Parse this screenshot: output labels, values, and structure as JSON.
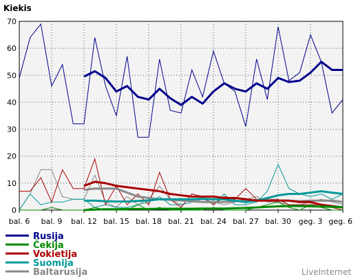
{
  "chart_data": {
    "type": "line",
    "ylabel": "Kiekis",
    "ylim": [
      0,
      70
    ],
    "yticks": [
      0,
      10,
      20,
      30,
      40,
      50,
      60,
      70
    ],
    "x_ticks": [
      "bal. 6",
      "bal. 9",
      "bal. 12",
      "bal. 15",
      "bal. 18",
      "bal. 21",
      "bal. 24",
      "bal. 27",
      "bal. 30",
      "geg. 3",
      "geg. 6"
    ],
    "x_days": [
      "bal. 6",
      "bal. 7",
      "bal. 8",
      "bal. 9",
      "bal. 10",
      "bal. 11",
      "bal. 12",
      "bal. 13",
      "bal. 14",
      "bal. 15",
      "bal. 16",
      "bal. 17",
      "bal. 18",
      "bal. 19",
      "bal. 20",
      "bal. 21",
      "bal. 22",
      "bal. 23",
      "bal. 24",
      "bal. 25",
      "bal. 26",
      "bal. 27",
      "bal. 28",
      "bal. 29",
      "bal. 30",
      "geg. 1",
      "geg. 2",
      "geg. 3",
      "geg. 4",
      "geg. 5",
      "geg. 6"
    ],
    "grid": true,
    "legend_position": "bottom-left",
    "series": [
      {
        "name": "Rusija",
        "color": "#00008b",
        "daily": [
          49,
          64,
          69,
          46,
          54,
          32,
          32,
          64,
          46,
          35,
          57,
          27,
          27,
          56,
          37,
          36,
          52,
          42,
          59,
          47,
          44,
          31,
          56,
          41,
          68,
          48,
          51,
          65,
          55,
          36,
          41
        ],
        "trend": [
          null,
          null,
          null,
          null,
          null,
          null,
          49.5,
          51.5,
          49,
          44,
          46,
          42,
          41,
          45,
          41.5,
          39,
          42,
          39.5,
          44,
          47,
          45,
          44,
          47,
          45,
          49,
          47.5,
          48,
          51,
          55,
          52,
          52
        ]
      },
      {
        "name": "Čekija",
        "color": "#008800",
        "daily": [
          0,
          0,
          0,
          1,
          0,
          0,
          0,
          1,
          0,
          0,
          0,
          2,
          0,
          1,
          0,
          0,
          0,
          0,
          1,
          0,
          0,
          0,
          1,
          2,
          3,
          1,
          0,
          2,
          1,
          0,
          0
        ],
        "trend": [
          null,
          null,
          null,
          null,
          null,
          null,
          0,
          0.2,
          0.3,
          0.3,
          0.4,
          0.4,
          0.4,
          0.5,
          0.5,
          0.5,
          0.5,
          0.6,
          0.6,
          0.6,
          0.7,
          0.8,
          1,
          1.2,
          1.4,
          1.5,
          1.5,
          1.4,
          1.3,
          1.2,
          1.1
        ]
      },
      {
        "name": "Vokietija",
        "color": "#aa0000",
        "daily": [
          7,
          7,
          12,
          3,
          15,
          8,
          8,
          19,
          2,
          9,
          2,
          6,
          2,
          14,
          4,
          1,
          6,
          5,
          2,
          5,
          4,
          8,
          4,
          4,
          4,
          2,
          2,
          2,
          2,
          1,
          0
        ],
        "trend": [
          null,
          null,
          null,
          null,
          null,
          null,
          9,
          10.5,
          10,
          9,
          8.5,
          8,
          7.5,
          7,
          6,
          5.5,
          5,
          5,
          5,
          4.5,
          4.5,
          4,
          3.5,
          3.5,
          3.5,
          3.5,
          3,
          3,
          2,
          1.5,
          1
        ]
      },
      {
        "name": "Suomija",
        "color": "#009999",
        "daily": [
          0,
          6,
          2,
          3,
          3,
          4,
          4,
          1,
          2,
          1,
          1,
          2,
          3,
          5,
          2,
          2,
          3,
          5,
          2,
          6,
          2,
          2,
          3,
          7,
          17,
          8,
          6,
          5,
          6,
          4,
          6
        ],
        "trend": [
          null,
          null,
          null,
          null,
          null,
          null,
          3.5,
          3.5,
          3.3,
          3.2,
          3.2,
          3.4,
          3.6,
          4,
          4,
          4,
          4,
          4.2,
          4,
          4,
          3.5,
          3,
          3.5,
          4.5,
          5.5,
          6,
          6,
          6.5,
          7,
          6.5,
          6
        ]
      },
      {
        "name": "Baltarusija",
        "color": "#888888",
        "daily": [
          0,
          6,
          15,
          15,
          5,
          4,
          4,
          13,
          3,
          1,
          5,
          2,
          4,
          9,
          4,
          2,
          3,
          4,
          3,
          2,
          3,
          4,
          5,
          3,
          3,
          2,
          2,
          3,
          4,
          3,
          2
        ],
        "trend": [
          null,
          null,
          null,
          null,
          null,
          null,
          7.5,
          8,
          8,
          8,
          6.5,
          5,
          4.5,
          4,
          3.8,
          3.6,
          3.3,
          3,
          3,
          3,
          3.3,
          3.5,
          3.8,
          3.8,
          3.6,
          3.5,
          3.3,
          3.5,
          3.5,
          3.5,
          3
        ]
      }
    ]
  },
  "brand": "LiveInternet"
}
